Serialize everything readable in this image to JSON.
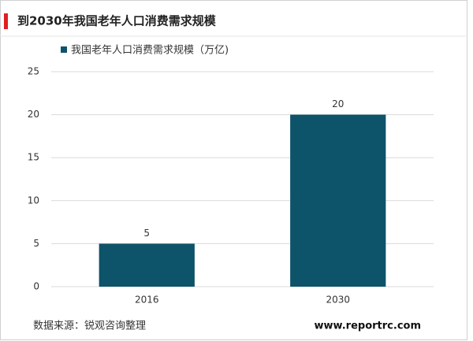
{
  "chart_data": {
    "type": "bar",
    "title": "到2030年我国老年人口消费需求规模",
    "categories": [
      "2016",
      "2030"
    ],
    "series": [
      {
        "name": "我国老年人口消费需求规模（万亿)",
        "color": "#0d5369",
        "values": [
          5,
          20
        ]
      }
    ],
    "ylim": [
      0,
      25
    ],
    "yticks": [
      0,
      5,
      10,
      15,
      20,
      25
    ],
    "grid": true,
    "source": "数据来源：锐观咨询整理",
    "website": "www.reportrc.com"
  }
}
